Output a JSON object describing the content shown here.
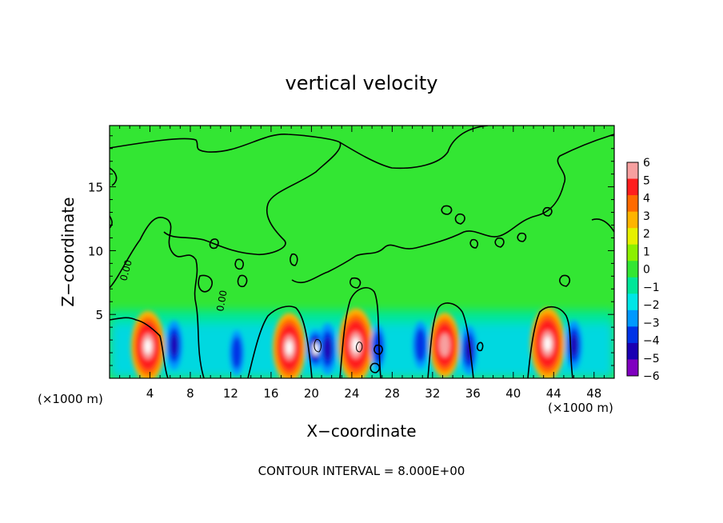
{
  "chart_data": {
    "type": "heatmap",
    "title": "vertical velocity",
    "xlabel": "X−coordinate",
    "ylabel": "Z−coordinate",
    "x_unit_left": "(×1000 m)",
    "x_unit_right": "(×1000 m)",
    "footer": "CONTOUR INTERVAL = 8.000E+00",
    "xlim": [
      0,
      50
    ],
    "ylim": [
      0,
      19.8
    ],
    "x_ticks": [
      4,
      8,
      12,
      16,
      20,
      24,
      28,
      32,
      36,
      40,
      44,
      48
    ],
    "x_tick_labels": [
      "4",
      "8",
      "12",
      "16",
      "20",
      "24",
      "28",
      "32",
      "36",
      "40",
      "44",
      "48"
    ],
    "y_ticks": [
      5,
      10,
      15
    ],
    "y_tick_labels": [
      "5",
      "10",
      "15"
    ],
    "contour_label": "0.00",
    "colorbar": {
      "ticks": [
        6,
        5,
        4,
        3,
        2,
        1,
        0,
        -1,
        -2,
        -3,
        -4,
        -5,
        -6
      ],
      "tick_labels": [
        "6",
        "5",
        "4",
        "3",
        "2",
        "1",
        "0",
        "−1",
        "−2",
        "−3",
        "−4",
        "−5",
        "−6"
      ],
      "colors": [
        "#f7a0a0",
        "#ff1e1e",
        "#ff6a00",
        "#ffb400",
        "#e6f000",
        "#8cf000",
        "#33e633",
        "#00e699",
        "#00e6e6",
        "#0099ff",
        "#0033e6",
        "#1a00b3",
        "#8000c0"
      ]
    },
    "updrafts": [
      {
        "x": 3.8,
        "z": 2.5,
        "w": 40
      },
      {
        "x": 17.8,
        "z": 2.4,
        "w": 36
      },
      {
        "x": 24.4,
        "z": 2.6,
        "w": 48
      },
      {
        "x": 33.2,
        "z": 2.6,
        "w": 22
      },
      {
        "x": 43.4,
        "z": 2.7,
        "w": 44
      },
      {
        "x": 20.4,
        "z": 2.3,
        "w": -30
      }
    ],
    "downdrafts": [
      {
        "x": 6.4,
        "z": 2.6,
        "w": -5
      },
      {
        "x": 12.6,
        "z": 2.0,
        "w": -3
      },
      {
        "x": 21.6,
        "z": 2.3,
        "w": -6
      },
      {
        "x": 26.6,
        "z": 2.4,
        "w": -3
      },
      {
        "x": 30.8,
        "z": 2.6,
        "w": -4
      },
      {
        "x": 35.6,
        "z": 2.2,
        "w": -5
      },
      {
        "x": 46.0,
        "z": 2.6,
        "w": -5
      }
    ]
  }
}
